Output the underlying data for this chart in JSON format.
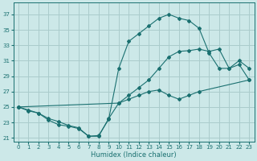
{
  "xlabel": "Humidex (Indice chaleur)",
  "background_color": "#cce8e8",
  "grid_color": "#aacccc",
  "line_color": "#1a7070",
  "xlim": [
    -0.5,
    23.5
  ],
  "ylim": [
    20.5,
    38.5
  ],
  "xticks": [
    0,
    1,
    2,
    3,
    4,
    5,
    6,
    7,
    8,
    9,
    10,
    11,
    12,
    13,
    14,
    15,
    16,
    17,
    18,
    19,
    20,
    21,
    22,
    23
  ],
  "yticks": [
    21,
    23,
    25,
    27,
    29,
    31,
    33,
    35,
    37
  ],
  "curve1_x": [
    0,
    1,
    2,
    3,
    4,
    5,
    6,
    7,
    8,
    9,
    10,
    11,
    12,
    13,
    14,
    15,
    16,
    17,
    18,
    23
  ],
  "curve1_y": [
    25,
    24.5,
    24.2,
    23.3,
    22.7,
    22.5,
    22.2,
    21.2,
    21.2,
    23.5,
    25.5,
    26,
    26.5,
    27,
    27.2,
    26.5,
    26,
    26.5,
    27,
    28.5
  ],
  "curve2_x": [
    0,
    1,
    2,
    3,
    4,
    5,
    6,
    7,
    8,
    9,
    10,
    11,
    12,
    13,
    14,
    15,
    16,
    17,
    18,
    19,
    20,
    21,
    22,
    23
  ],
  "curve2_y": [
    25,
    24.6,
    24.2,
    23.5,
    23.1,
    22.6,
    22.3,
    21.2,
    21.3,
    23.4,
    30.0,
    33.5,
    34.5,
    35.5,
    36.5,
    37.0,
    36.5,
    36.2,
    35.2,
    32.0,
    30.0,
    30.0,
    30.5,
    28.5
  ],
  "curve3_x": [
    0,
    10,
    11,
    12,
    13,
    14,
    15,
    16,
    17,
    18,
    19,
    20,
    21,
    22,
    23
  ],
  "curve3_y": [
    25,
    25.5,
    26.5,
    27.5,
    28.5,
    30.0,
    31.5,
    32.2,
    32.3,
    32.5,
    32.2,
    32.5,
    30.0,
    31.0,
    30.0
  ]
}
